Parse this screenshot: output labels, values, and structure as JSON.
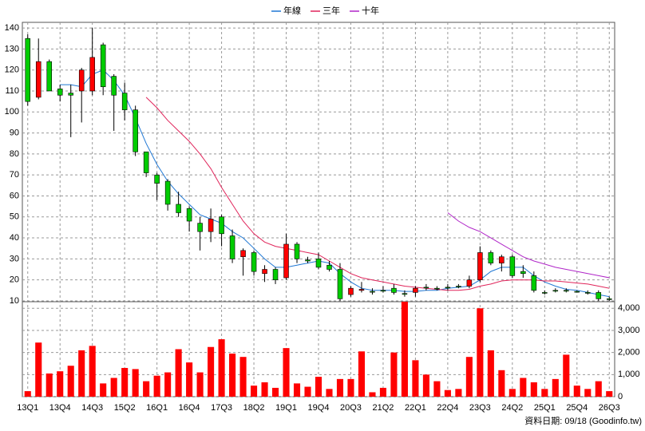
{
  "chart_data": {
    "type": "candlestick",
    "categories": [
      "13Q1",
      null,
      null,
      "13Q4",
      null,
      null,
      "14Q3",
      null,
      null,
      "15Q2",
      null,
      null,
      "16Q1",
      null,
      null,
      "16Q4",
      null,
      null,
      "17Q3",
      null,
      null,
      "18Q2",
      null,
      null,
      "19Q1",
      null,
      null,
      "19Q4",
      null,
      null,
      "20Q3",
      null,
      null,
      "21Q2",
      null,
      null,
      "22Q1",
      null,
      null,
      "22Q4",
      null,
      null,
      "23Q3",
      null,
      null,
      "24Q2",
      null,
      null,
      "25Q1",
      null,
      null,
      "25Q4",
      null,
      null,
      "26Q3"
    ],
    "open": [
      135,
      107,
      124,
      111,
      109,
      110,
      110,
      132,
      117,
      109,
      101,
      81,
      70,
      67,
      56,
      54,
      47,
      43,
      50,
      41,
      31,
      33,
      23,
      25,
      21,
      37,
      29.5,
      30,
      27,
      25,
      13,
      15,
      14.5,
      15,
      16,
      13.5,
      14,
      16.5,
      16,
      16.5,
      17,
      17,
      20,
      33,
      28,
      31,
      24,
      22,
      14,
      15,
      15,
      14.5,
      14,
      14,
      11
    ],
    "high": [
      137,
      135,
      125,
      113,
      113,
      121,
      140,
      133,
      118,
      114,
      103,
      81,
      71,
      68,
      62,
      55,
      50,
      54,
      51,
      44,
      35,
      34,
      27,
      26,
      42,
      38,
      31,
      33,
      29,
      28,
      17,
      19,
      16,
      17,
      18,
      15,
      17,
      18,
      17,
      18,
      18,
      22,
      36,
      34,
      32,
      32,
      27,
      24,
      15,
      16,
      16,
      15,
      15,
      15,
      12
    ],
    "low": [
      103,
      106,
      110,
      105,
      88,
      95,
      108,
      108,
      91,
      96,
      79,
      69,
      58,
      53,
      50,
      43,
      34,
      38,
      36,
      28,
      22,
      22,
      19,
      18,
      20,
      28,
      28,
      25,
      24,
      10,
      12,
      14,
      13,
      14,
      13,
      12,
      12,
      15,
      15,
      15,
      16,
      16,
      19,
      27,
      24,
      21,
      21,
      14,
      13,
      14,
      14,
      14,
      13,
      10,
      10
    ],
    "close": [
      105,
      124,
      110,
      108,
      108,
      120,
      126,
      112,
      108,
      101,
      81,
      71,
      66,
      56,
      52,
      48,
      43,
      49,
      42,
      30,
      34,
      24,
      25,
      20,
      37,
      30,
      29,
      26,
      25,
      11,
      16,
      15.5,
      14.5,
      15,
      14,
      13.5,
      16,
      16.5,
      16,
      16.5,
      17,
      20,
      33,
      28,
      31,
      22,
      23,
      15,
      14,
      15,
      15,
      14.5,
      14,
      11,
      11
    ],
    "up_color": "#ff0000",
    "down_color": "#00cc00",
    "series": [
      {
        "name": "年線",
        "color": "#1f77d4",
        "values": [
          null,
          null,
          null,
          113,
          113,
          112,
          118,
          120,
          115,
          108,
          97,
          85,
          75,
          67,
          61,
          56,
          51,
          49,
          47,
          43,
          40,
          35,
          30,
          26,
          26,
          27,
          28,
          29,
          28,
          23,
          19,
          16,
          15,
          15,
          15,
          14.5,
          14.5,
          15,
          15,
          16,
          16.5,
          17,
          20,
          24,
          26,
          26,
          26,
          22,
          19,
          17,
          15.5,
          15,
          14,
          13,
          12
        ]
      },
      {
        "name": "三年",
        "color": "#e0245a",
        "values": [
          null,
          null,
          null,
          null,
          null,
          null,
          null,
          null,
          null,
          null,
          null,
          107,
          102,
          96,
          91,
          86,
          80,
          73,
          64,
          56,
          48,
          42,
          38,
          36,
          35,
          34,
          33,
          32,
          29,
          26,
          23,
          21,
          20,
          19,
          18,
          17,
          16.5,
          16,
          15.5,
          15,
          15,
          15.5,
          17,
          18,
          19.5,
          20,
          20,
          20,
          19.5,
          19.5,
          19,
          18.5,
          18,
          17,
          16
        ]
      },
      {
        "name": "十年",
        "color": "#b026c8",
        "values": [
          null,
          null,
          null,
          null,
          null,
          null,
          null,
          null,
          null,
          null,
          null,
          null,
          null,
          null,
          null,
          null,
          null,
          null,
          null,
          null,
          null,
          null,
          null,
          null,
          null,
          null,
          null,
          null,
          null,
          null,
          null,
          null,
          null,
          null,
          null,
          null,
          null,
          null,
          null,
          52,
          48,
          45,
          43,
          40,
          37,
          34,
          31,
          29,
          27.5,
          26,
          25,
          24,
          23,
          22,
          21
        ]
      }
    ],
    "volume": {
      "color": "#ff0000",
      "axis": "y2",
      "values": [
        250,
        2450,
        1050,
        1150,
        1400,
        2100,
        2300,
        600,
        850,
        1300,
        1250,
        700,
        950,
        1100,
        2150,
        1550,
        1100,
        2250,
        2600,
        1950,
        1800,
        500,
        650,
        400,
        2200,
        600,
        450,
        900,
        350,
        800,
        800,
        2050,
        200,
        400,
        2000,
        4300,
        1650,
        1000,
        700,
        300,
        350,
        1800,
        4000,
        2100,
        1200,
        350,
        850,
        650,
        350,
        800,
        1900,
        500,
        350,
        700,
        250
      ]
    },
    "ylim": [
      9.6,
      142.7
    ],
    "yticks": [
      10,
      20,
      30,
      40,
      50,
      60,
      70,
      80,
      90,
      100,
      110,
      120,
      130,
      140
    ],
    "y2lim": [
      0,
      4300
    ],
    "y2ticks": [
      0,
      {
        "value": 1000,
        "label": "1,000"
      },
      {
        "value": 2000,
        "label": "2,000"
      },
      {
        "value": 3000,
        "label": "3,000"
      },
      {
        "value": 4000,
        "label": "4,000"
      }
    ],
    "grid": true,
    "footer": "資料日期: 09/18 (Goodinfo.tw)"
  }
}
